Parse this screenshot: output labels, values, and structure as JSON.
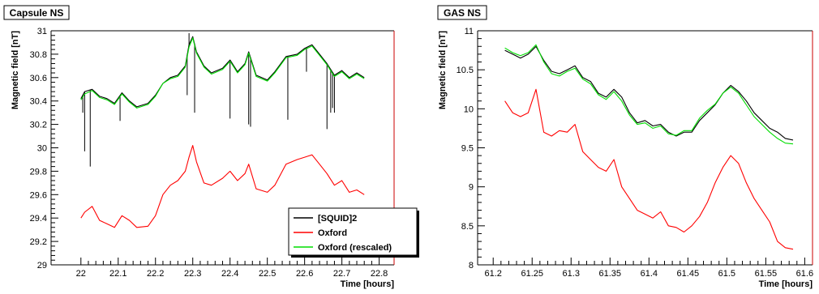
{
  "chart_data": [
    {
      "type": "line",
      "title": "Capsule NS",
      "xlabel": "Time [hours]",
      "ylabel": "Magnetic field [nT]",
      "xlim": [
        21.92,
        22.84
      ],
      "ylim": [
        29,
        31
      ],
      "xticks": [
        22,
        22.1,
        22.2,
        22.3,
        22.4,
        22.5,
        22.6,
        22.7,
        22.8
      ],
      "xtick_labels": [
        "22",
        "22.1",
        "22.2",
        "22.3",
        "22.4",
        "22.5",
        "22.6",
        "22.7",
        "22.8"
      ],
      "yticks": [
        29,
        29.2,
        29.4,
        29.6,
        29.8,
        30,
        30.2,
        30.4,
        30.6,
        30.8,
        31
      ],
      "ytick_labels": [
        "29",
        "29.2",
        "29.4",
        "29.6",
        "29.8",
        "30",
        "30.2",
        "30.4",
        "30.6",
        "30.8",
        "31"
      ],
      "grid": false,
      "legend_position": "bottom-right",
      "series": [
        {
          "name": "[SQUID]2",
          "color": "#000000",
          "x": [
            22.0,
            22.01,
            22.03,
            22.05,
            22.07,
            22.09,
            22.11,
            22.13,
            22.15,
            22.18,
            22.2,
            22.22,
            22.24,
            22.26,
            22.28,
            22.29,
            22.3,
            22.31,
            22.33,
            22.35,
            22.38,
            22.4,
            22.42,
            22.44,
            22.45,
            22.47,
            22.5,
            22.52,
            22.55,
            22.58,
            22.6,
            22.62,
            22.64,
            22.66,
            22.68,
            22.7,
            22.72,
            22.74,
            22.76
          ],
          "y": [
            30.42,
            30.48,
            30.5,
            30.44,
            30.42,
            30.38,
            30.47,
            30.4,
            30.35,
            30.38,
            30.45,
            30.55,
            30.6,
            30.62,
            30.7,
            30.88,
            30.95,
            30.82,
            30.7,
            30.64,
            30.68,
            30.75,
            30.65,
            30.72,
            30.82,
            30.62,
            30.58,
            30.65,
            30.78,
            30.8,
            30.85,
            30.88,
            30.8,
            30.72,
            30.62,
            30.66,
            30.6,
            30.64,
            30.6
          ],
          "spikes": [
            [
              22.005,
              30.3
            ],
            [
              22.01,
              29.97
            ],
            [
              22.025,
              29.84
            ],
            [
              22.105,
              30.23
            ],
            [
              22.285,
              30.45
            ],
            [
              22.29,
              30.98
            ],
            [
              22.305,
              30.3
            ],
            [
              22.4,
              30.25
            ],
            [
              22.45,
              30.2
            ],
            [
              22.455,
              30.18
            ],
            [
              22.555,
              30.24
            ],
            [
              22.605,
              30.65
            ],
            [
              22.66,
              30.16
            ],
            [
              22.67,
              30.3
            ],
            [
              22.675,
              30.34
            ],
            [
              22.68,
              30.3
            ]
          ]
        },
        {
          "name": "Oxford",
          "color": "#ff0000",
          "x": [
            22.0,
            22.01,
            22.03,
            22.05,
            22.07,
            22.09,
            22.11,
            22.13,
            22.15,
            22.18,
            22.2,
            22.22,
            22.24,
            22.26,
            22.28,
            22.29,
            22.3,
            22.31,
            22.33,
            22.35,
            22.38,
            22.4,
            22.42,
            22.44,
            22.45,
            22.47,
            22.5,
            22.52,
            22.55,
            22.58,
            22.6,
            22.62,
            22.64,
            22.66,
            22.68,
            22.7,
            22.72,
            22.74,
            22.76
          ],
          "y": [
            29.4,
            29.45,
            29.5,
            29.38,
            29.35,
            29.32,
            29.42,
            29.38,
            29.32,
            29.33,
            29.42,
            29.6,
            29.68,
            29.72,
            29.8,
            29.92,
            30.02,
            29.88,
            29.7,
            29.68,
            29.74,
            29.8,
            29.72,
            29.78,
            29.86,
            29.65,
            29.62,
            29.68,
            29.86,
            29.9,
            29.92,
            29.94,
            29.86,
            29.78,
            29.68,
            29.72,
            29.62,
            29.64,
            29.6
          ]
        },
        {
          "name": "Oxford (rescaled)",
          "color": "#00dd00",
          "x": [
            22.0,
            22.01,
            22.03,
            22.05,
            22.07,
            22.09,
            22.11,
            22.13,
            22.15,
            22.18,
            22.2,
            22.22,
            22.24,
            22.26,
            22.28,
            22.29,
            22.3,
            22.31,
            22.33,
            22.35,
            22.38,
            22.4,
            22.42,
            22.44,
            22.45,
            22.47,
            22.5,
            22.52,
            22.55,
            22.58,
            22.6,
            22.62,
            22.64,
            22.66,
            22.68,
            22.7,
            22.72,
            22.74,
            22.76
          ],
          "y": [
            30.41,
            30.46,
            30.49,
            30.43,
            30.41,
            30.37,
            30.46,
            30.39,
            30.34,
            30.37,
            30.44,
            30.55,
            30.59,
            30.61,
            30.69,
            30.86,
            30.94,
            30.81,
            30.69,
            30.63,
            30.67,
            30.74,
            30.64,
            30.71,
            30.81,
            30.61,
            30.57,
            30.64,
            30.77,
            30.79,
            30.84,
            30.87,
            30.79,
            30.71,
            30.61,
            30.65,
            30.59,
            30.63,
            30.59
          ]
        }
      ]
    },
    {
      "type": "line",
      "title": "GAS NS",
      "xlabel": "Time [hours]",
      "ylabel": "Magnetic field [nT]",
      "xlim": [
        61.18,
        61.61
      ],
      "ylim": [
        8,
        11
      ],
      "xticks": [
        61.2,
        61.25,
        61.3,
        61.35,
        61.4,
        61.45,
        61.5,
        61.55,
        61.6
      ],
      "xtick_labels": [
        "61.2",
        "61.25",
        "61.3",
        "61.35",
        "61.4",
        "61.45",
        "61.5",
        "61.55",
        "61.6"
      ],
      "yticks": [
        8,
        8.5,
        9,
        9.5,
        10,
        10.5,
        11
      ],
      "ytick_labels": [
        "8",
        "8.5",
        "9",
        "9.5",
        "10",
        "10.5",
        "11"
      ],
      "grid": false,
      "legend_position": "none",
      "series": [
        {
          "name": "[SQUID]2",
          "color": "#000000",
          "x": [
            61.215,
            61.225,
            61.235,
            61.245,
            61.255,
            61.265,
            61.275,
            61.285,
            61.295,
            61.305,
            61.315,
            61.325,
            61.335,
            61.345,
            61.355,
            61.365,
            61.375,
            61.385,
            61.395,
            61.405,
            61.415,
            61.425,
            61.435,
            61.445,
            61.455,
            61.465,
            61.475,
            61.485,
            61.495,
            61.505,
            61.515,
            61.525,
            61.535,
            61.545,
            61.555,
            61.565,
            61.575,
            61.585
          ],
          "y": [
            10.75,
            10.7,
            10.65,
            10.7,
            10.8,
            10.62,
            10.48,
            10.45,
            10.5,
            10.55,
            10.4,
            10.35,
            10.2,
            10.15,
            10.25,
            10.15,
            9.95,
            9.82,
            9.85,
            9.78,
            9.8,
            9.7,
            9.65,
            9.7,
            9.7,
            9.85,
            9.95,
            10.05,
            10.2,
            10.3,
            10.22,
            10.1,
            9.95,
            9.85,
            9.75,
            9.7,
            9.62,
            9.6
          ]
        },
        {
          "name": "Oxford",
          "color": "#ff0000",
          "x": [
            61.215,
            61.225,
            61.235,
            61.245,
            61.255,
            61.265,
            61.275,
            61.285,
            61.295,
            61.305,
            61.315,
            61.325,
            61.335,
            61.345,
            61.355,
            61.365,
            61.375,
            61.385,
            61.395,
            61.405,
            61.415,
            61.425,
            61.435,
            61.445,
            61.455,
            61.465,
            61.475,
            61.485,
            61.495,
            61.505,
            61.515,
            61.525,
            61.535,
            61.545,
            61.555,
            61.565,
            61.575,
            61.585
          ],
          "y": [
            10.1,
            9.95,
            9.9,
            9.95,
            10.25,
            9.7,
            9.65,
            9.72,
            9.7,
            9.8,
            9.45,
            9.35,
            9.25,
            9.2,
            9.35,
            9.0,
            8.85,
            8.7,
            8.65,
            8.6,
            8.68,
            8.5,
            8.48,
            8.42,
            8.5,
            8.62,
            8.8,
            9.05,
            9.25,
            9.4,
            9.3,
            9.05,
            8.85,
            8.7,
            8.55,
            8.3,
            8.22,
            8.2
          ]
        },
        {
          "name": "Oxford (rescaled)",
          "color": "#00dd00",
          "x": [
            61.215,
            61.225,
            61.235,
            61.245,
            61.255,
            61.265,
            61.275,
            61.285,
            61.295,
            61.305,
            61.315,
            61.325,
            61.335,
            61.345,
            61.355,
            61.365,
            61.375,
            61.385,
            61.395,
            61.405,
            61.415,
            61.425,
            61.435,
            61.445,
            61.455,
            61.465,
            61.475,
            61.485,
            61.495,
            61.505,
            61.515,
            61.525,
            61.535,
            61.545,
            61.555,
            61.565,
            61.575,
            61.585
          ],
          "y": [
            10.78,
            10.72,
            10.68,
            10.72,
            10.82,
            10.6,
            10.45,
            10.42,
            10.48,
            10.52,
            10.38,
            10.32,
            10.18,
            10.12,
            10.22,
            10.1,
            9.92,
            9.8,
            9.82,
            9.75,
            9.78,
            9.68,
            9.66,
            9.72,
            9.72,
            9.88,
            9.98,
            10.06,
            10.2,
            10.28,
            10.2,
            10.05,
            9.9,
            9.8,
            9.7,
            9.62,
            9.56,
            9.55
          ]
        }
      ]
    }
  ]
}
